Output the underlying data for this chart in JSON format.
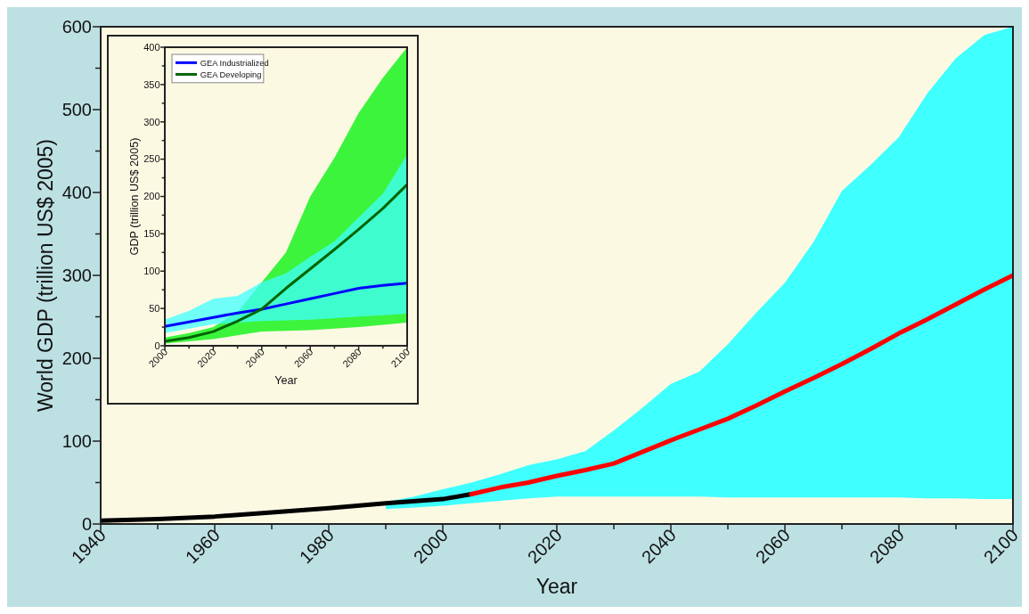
{
  "chart_data": [
    {
      "type": "line",
      "xlabel": "Year",
      "ylabel": "World GDP (trillion US$ 2005)",
      "xlim": [
        1940,
        2100
      ],
      "ylim": [
        0,
        600
      ],
      "xticks": [
        1940,
        {
          "value": 1950,
          "label": null
        },
        1960,
        {
          "value": 1970,
          "label": null
        },
        1980,
        {
          "value": 1990,
          "label": null
        },
        2000,
        {
          "value": 2010,
          "label": null
        },
        2020,
        {
          "value": 2030,
          "label": null
        },
        2040,
        {
          "value": 2050,
          "label": null
        },
        2060,
        {
          "value": 2070,
          "label": null
        },
        2080,
        {
          "value": 2090,
          "label": null
        },
        2100
      ],
      "yticks": [
        0,
        {
          "value": 50,
          "label": null
        },
        100,
        {
          "value": 150,
          "label": null
        },
        200,
        {
          "value": 250,
          "label": null
        },
        300,
        {
          "value": 350,
          "label": null
        },
        400,
        {
          "value": 450,
          "label": null
        },
        500,
        {
          "value": 550,
          "label": null
        },
        600
      ],
      "grid": false,
      "marker": "none",
      "line_style": "solid",
      "series": [
        {
          "type": "area",
          "color": "#40ffff",
          "x": [
            1990,
            1995,
            2000,
            2005,
            2010,
            2015,
            2020,
            2025,
            2030,
            2035,
            2040,
            2045,
            2050,
            2055,
            2060,
            2065,
            2070,
            2075,
            2080,
            2085,
            2090,
            2095,
            2100
          ],
          "values": [
            null,
            null,
            null,
            null,
            null,
            null,
            null,
            null,
            null,
            null,
            null,
            null,
            null,
            null,
            null,
            null,
            null,
            null,
            null,
            null,
            null,
            null,
            null
          ],
          "lower": [
            18,
            20,
            22,
            25,
            28,
            31,
            33,
            33,
            33,
            33,
            33,
            33,
            32,
            32,
            32,
            32,
            32,
            32,
            32,
            31,
            31,
            30,
            30
          ],
          "upper": [
            27,
            33,
            42,
            50,
            60,
            71,
            78,
            88,
            113,
            140,
            169,
            184,
            217,
            255,
            291,
            340,
            402,
            433,
            467,
            520,
            562,
            590,
            600
          ]
        },
        {
          "color": "#000000",
          "x": [
            1940,
            1950,
            1960,
            1970,
            1980,
            1990,
            2000,
            2005
          ],
          "values": [
            4,
            6,
            9,
            14,
            19,
            25,
            30,
            36
          ]
        },
        {
          "color": "#ff0000",
          "x": [
            2005,
            2010,
            2015,
            2020,
            2025,
            2030,
            2035,
            2040,
            2045,
            2050,
            2055,
            2060,
            2065,
            2070,
            2075,
            2080,
            2085,
            2090,
            2095,
            2100
          ],
          "values": [
            36,
            44,
            50,
            58,
            65,
            73,
            87,
            101,
            114,
            127,
            143,
            160,
            176,
            193,
            211,
            230,
            247,
            265,
            283,
            300
          ]
        }
      ]
    },
    {
      "type": "line",
      "xlabel": "Year",
      "ylabel": "GDP (trillion US$ 2005)",
      "xlim": [
        2000,
        2100
      ],
      "ylim": [
        0,
        400
      ],
      "xticks": [
        2000,
        {
          "value": 2010,
          "label": null
        },
        2020,
        {
          "value": 2030,
          "label": null
        },
        2040,
        {
          "value": 2050,
          "label": null
        },
        2060,
        {
          "value": 2070,
          "label": null
        },
        2080,
        {
          "value": 2090,
          "label": null
        },
        2100
      ],
      "yticks": [
        0,
        {
          "value": 25,
          "label": null
        },
        50,
        {
          "value": 75,
          "label": null
        },
        100,
        {
          "value": 125,
          "label": null
        },
        150,
        {
          "value": 175,
          "label": null
        },
        200,
        {
          "value": 225,
          "label": null
        },
        250,
        {
          "value": 275,
          "label": null
        },
        300,
        {
          "value": 325,
          "label": null
        },
        350,
        {
          "value": 375,
          "label": null
        },
        400
      ],
      "grid": false,
      "marker": "none",
      "line_style": "solid",
      "legend": "top left",
      "series": [
        {
          "type": "area",
          "color": "#3cf43c",
          "x": [
            2000,
            2010,
            2020,
            2030,
            2040,
            2050,
            2060,
            2070,
            2080,
            2090,
            2100
          ],
          "values": [
            null,
            null,
            null,
            null,
            null,
            null,
            null,
            null,
            null,
            null,
            null
          ],
          "lower": [
            3,
            6,
            9,
            14,
            19,
            20,
            21,
            23,
            25,
            28,
            31
          ],
          "upper": [
            11,
            17,
            25,
            45,
            85,
            125,
            200,
            252,
            312,
            359,
            400
          ]
        },
        {
          "type": "area",
          "color": "#40ffff",
          "x": [
            2000,
            2010,
            2020,
            2030,
            2040,
            2050,
            2060,
            2070,
            2080,
            2090,
            2100
          ],
          "values": [
            null,
            null,
            null,
            null,
            null,
            null,
            null,
            null,
            null,
            null,
            null
          ],
          "lower": [
            17,
            23,
            29,
            31,
            33,
            34,
            35,
            37,
            39,
            41,
            43
          ],
          "upper": [
            35,
            47,
            63,
            67,
            85,
            97,
            119,
            140,
            172,
            204,
            256
          ]
        },
        {
          "name": "GEA Industrialized",
          "color": "#0000ff",
          "x": [
            2000,
            2010,
            2020,
            2030,
            2040,
            2050,
            2060,
            2070,
            2080,
            2090,
            2100
          ],
          "values": [
            26,
            32,
            38,
            44,
            49,
            56,
            63,
            70,
            77,
            81,
            84
          ]
        },
        {
          "name": "GEA Developing",
          "color": "#006400",
          "x": [
            2000,
            2010,
            2020,
            2030,
            2040,
            2050,
            2060,
            2070,
            2080,
            2090,
            2100
          ],
          "values": [
            6,
            11,
            19,
            33,
            49,
            77,
            103,
            129,
            156,
            184,
            216
          ]
        }
      ]
    }
  ]
}
